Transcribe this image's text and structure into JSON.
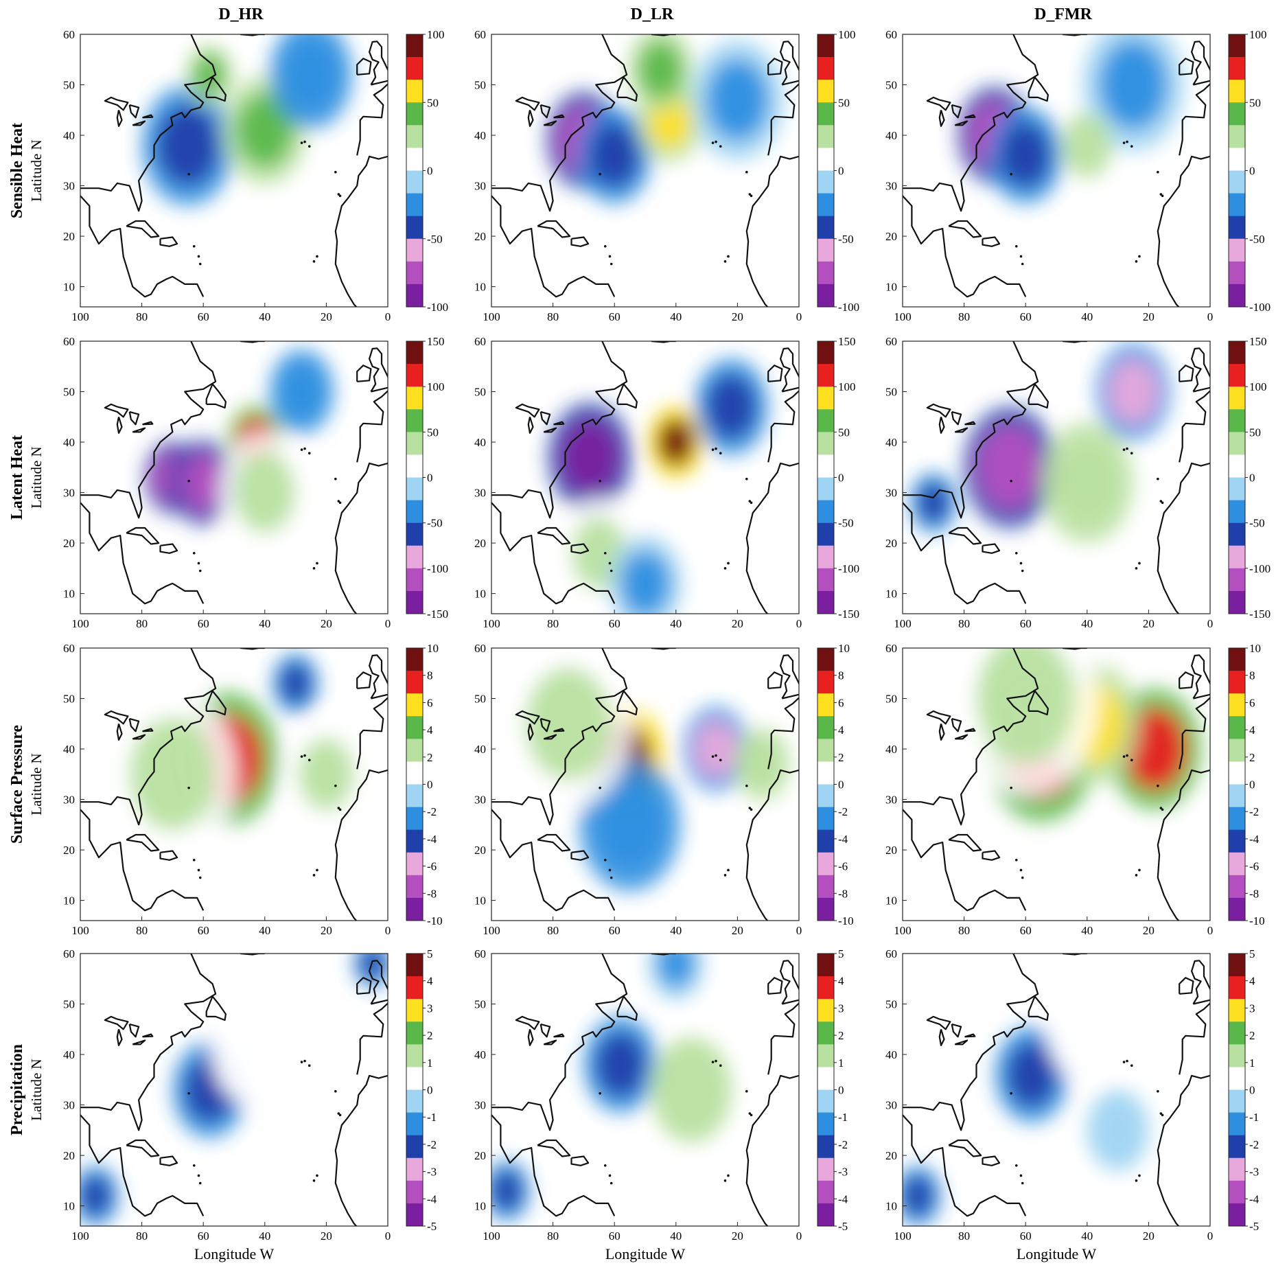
{
  "columns": [
    "D_HR",
    "D_LR",
    "D_FMR"
  ],
  "rows": [
    {
      "title": "Sensible Heat",
      "colorbar": [
        "100",
        "50",
        "0",
        "-50",
        "-100"
      ]
    },
    {
      "title": "Latent Heat",
      "colorbar": [
        "150",
        "100",
        "50",
        "0",
        "-50",
        "-100",
        "-150"
      ]
    },
    {
      "title": "Surface Pressure",
      "colorbar": [
        "10",
        "8",
        "6",
        "4",
        "2",
        "0",
        "-2",
        "-4",
        "-6",
        "-8",
        "-10"
      ]
    },
    {
      "title": "Precipitation",
      "colorbar": [
        "5",
        "4",
        "3",
        "2",
        "1",
        "0",
        "-1",
        "-2",
        "-3",
        "-4",
        "-5"
      ]
    }
  ],
  "y_axis_label": "Latitude N",
  "x_axis_label": "Longitude W",
  "lat_ticks": [
    "60",
    "50",
    "40",
    "30",
    "20",
    "10"
  ],
  "lon_ticks": [
    "100",
    "80",
    "60",
    "40",
    "20",
    "0"
  ],
  "colormap": [
    "#7a1fa0",
    "#b44fc0",
    "#e8a8dc",
    "#1f3faa",
    "#2e8fe0",
    "#9fd4f2",
    "#ffffff",
    "#b8e0a0",
    "#5ab84a",
    "#ffe020",
    "#e82020",
    "#701010"
  ],
  "features": [
    [
      {
        "lon": -65,
        "lat": 38,
        "r": 10,
        "v": -0.5
      },
      {
        "lon": -58,
        "lat": 52,
        "r": 5,
        "v": 0.4
      },
      {
        "lon": -40,
        "lat": 41,
        "r": 9,
        "v": 0.4
      },
      {
        "lon": -25,
        "lat": 52,
        "r": 9,
        "v": -0.35
      }
    ],
    [
      {
        "lon": -70,
        "lat": 39,
        "r": 8,
        "v": -0.8
      },
      {
        "lon": -60,
        "lat": 36,
        "r": 8,
        "v": -0.5
      },
      {
        "lon": -42,
        "lat": 43,
        "r": 7,
        "v": 0.6
      },
      {
        "lon": -45,
        "lat": 53,
        "r": 7,
        "v": 0.4
      },
      {
        "lon": -20,
        "lat": 47,
        "r": 10,
        "v": -0.3
      }
    ],
    [
      {
        "lon": -70,
        "lat": 40,
        "r": 8,
        "v": -0.8
      },
      {
        "lon": -60,
        "lat": 36,
        "r": 8,
        "v": -0.5
      },
      {
        "lon": -25,
        "lat": 50,
        "r": 11,
        "v": -0.3
      },
      {
        "lon": -40,
        "lat": 38,
        "r": 8,
        "v": 0.2
      }
    ],
    [
      {
        "lon": -70,
        "lat": 33,
        "r": 6,
        "v": -0.85
      },
      {
        "lon": -60,
        "lat": 32,
        "r": 7,
        "v": -0.85
      },
      {
        "lon": -43,
        "lat": 40,
        "r": 6,
        "v": 0.75
      },
      {
        "lon": -28,
        "lat": 50,
        "r": 7,
        "v": -0.35
      },
      {
        "lon": -40,
        "lat": 30,
        "r": 10,
        "v": 0.25
      }
    ],
    [
      {
        "lon": -68,
        "lat": 37,
        "r": 9,
        "v": -0.95
      },
      {
        "lon": -40,
        "lat": 40,
        "r": 6,
        "v": 1.0
      },
      {
        "lon": -22,
        "lat": 47,
        "r": 8,
        "v": -0.5
      },
      {
        "lon": -65,
        "lat": 18,
        "r": 9,
        "v": 0.3
      },
      {
        "lon": -50,
        "lat": 12,
        "r": 8,
        "v": -0.3
      }
    ],
    [
      {
        "lon": -65,
        "lat": 35,
        "r": 10,
        "v": -0.9
      },
      {
        "lon": -25,
        "lat": 50,
        "r": 8,
        "v": -0.6
      },
      {
        "lon": -40,
        "lat": 32,
        "r": 10,
        "v": 0.35
      },
      {
        "lon": -90,
        "lat": 28,
        "r": 5,
        "v": -0.5
      }
    ],
    [
      {
        "lon": -52,
        "lat": 38,
        "r": 11,
        "v": 0.75
      },
      {
        "lon": -30,
        "lat": 53,
        "r": 5,
        "v": -0.4
      },
      {
        "lon": -70,
        "lat": 35,
        "r": 14,
        "v": 0.3
      },
      {
        "lon": -20,
        "lat": 35,
        "r": 9,
        "v": 0.3
      }
    ],
    [
      {
        "lon": -57,
        "lat": 38,
        "r": 9,
        "v": 1.0
      },
      {
        "lon": -27,
        "lat": 40,
        "r": 7,
        "v": -0.6
      },
      {
        "lon": -55,
        "lat": 25,
        "r": 11,
        "v": -0.35
      },
      {
        "lon": -75,
        "lat": 45,
        "r": 14,
        "v": 0.3
      },
      {
        "lon": -12,
        "lat": 37,
        "r": 6,
        "v": 0.35
      }
    ],
    [
      {
        "lon": -55,
        "lat": 40,
        "r": 12,
        "v": 0.8
      },
      {
        "lon": -18,
        "lat": 40,
        "r": 10,
        "v": 0.75
      },
      {
        "lon": -38,
        "lat": 45,
        "r": 10,
        "v": 0.55
      },
      {
        "lon": -60,
        "lat": 50,
        "r": 16,
        "v": 0.3
      }
    ],
    [
      {
        "lon": -58,
        "lat": 33,
        "r": 8,
        "v": -0.4
      },
      {
        "lon": -45,
        "lat": 40,
        "r": 12,
        "v": 0.18
      },
      {
        "lon": -95,
        "lat": 12,
        "r": 5,
        "v": -0.4
      },
      {
        "lon": -5,
        "lat": 58,
        "r": 4,
        "v": -0.5
      }
    ],
    [
      {
        "lon": -58,
        "lat": 38,
        "r": 8,
        "v": -0.45
      },
      {
        "lon": -35,
        "lat": 33,
        "r": 13,
        "v": 0.2
      },
      {
        "lon": -95,
        "lat": 13,
        "r": 5,
        "v": -0.5
      },
      {
        "lon": -40,
        "lat": 58,
        "r": 6,
        "v": -0.3
      }
    ],
    [
      {
        "lon": -58,
        "lat": 36,
        "r": 8,
        "v": -0.4
      },
      {
        "lon": -40,
        "lat": 45,
        "r": 13,
        "v": 0.15
      },
      {
        "lon": -95,
        "lat": 12,
        "r": 5,
        "v": -0.4
      },
      {
        "lon": -30,
        "lat": 25,
        "r": 10,
        "v": -0.15
      }
    ]
  ]
}
